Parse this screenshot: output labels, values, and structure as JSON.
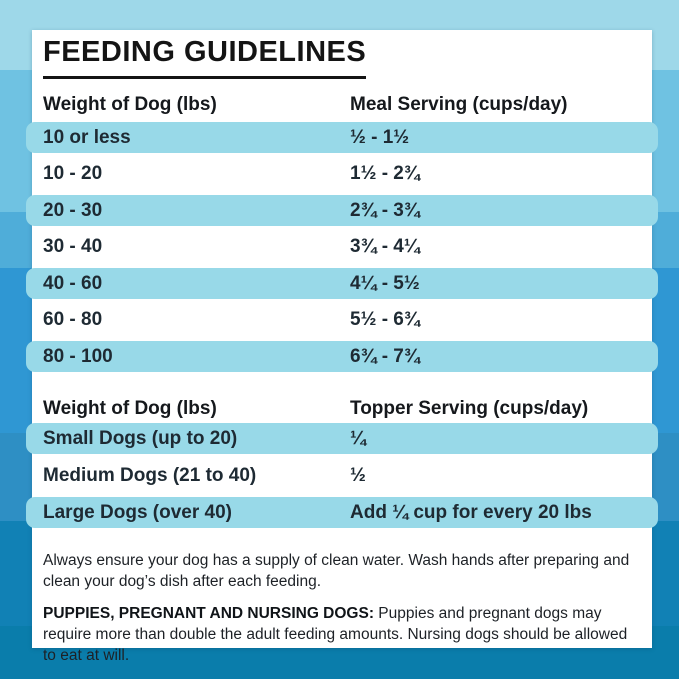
{
  "title": "FEEDING GUIDELINES",
  "meal_table": {
    "header": {
      "col1": "Weight of Dog (lbs)",
      "col2": "Meal Serving (cups/day)"
    },
    "rows": [
      {
        "weight": "10 or less",
        "serving": "½ - 1½"
      },
      {
        "weight": "10 - 20",
        "serving": "1½ - 2¾"
      },
      {
        "weight": "20 - 30",
        "serving": "2¾ - 3¾"
      },
      {
        "weight": "30 - 40",
        "serving": "3¾ - 4¼"
      },
      {
        "weight": "40 - 60",
        "serving": "4¼ - 5½"
      },
      {
        "weight": "60 - 80",
        "serving": "5½ - 6¾"
      },
      {
        "weight": "80 - 100",
        "serving": "6¾ - 7¾"
      }
    ]
  },
  "topper_table": {
    "header": {
      "col1": "Weight of Dog (lbs)",
      "col2": "Topper Serving (cups/day)"
    },
    "rows": [
      {
        "weight": "Small Dogs (up to 20)",
        "serving": "¼"
      },
      {
        "weight": "Medium Dogs (21 to 40)",
        "serving": "½"
      },
      {
        "weight": "Large Dogs (over 40)",
        "serving": "Add ¼ cup for every 20 lbs"
      }
    ]
  },
  "notes": {
    "water": "Always ensure your dog has a supply of clean water. Wash hands after preparing and clean your dog’s dish after each feeding.",
    "puppies_label": "PUPPIES, PREGNANT AND NURSING DOGS:",
    "puppies_text": " Puppies and pregnant dogs may require more than double the adult feeding amounts. Nursing dogs should be allowed to eat at will."
  },
  "colors": {
    "row_highlight": "#98d9e8",
    "card_background": "#ffffff",
    "text": "#1e2a33",
    "background_top": "#9ed8e9",
    "background_bottom": "#0a7dab"
  }
}
